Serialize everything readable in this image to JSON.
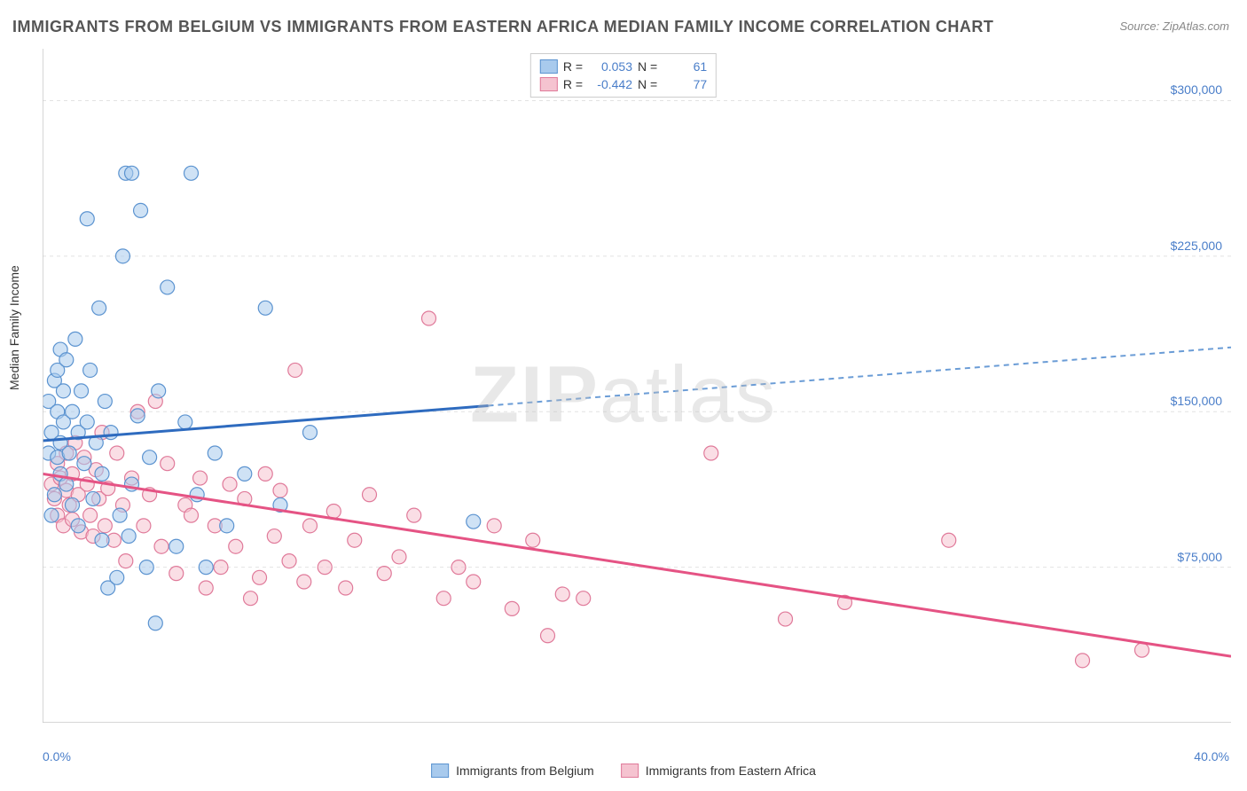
{
  "title": "IMMIGRANTS FROM BELGIUM VS IMMIGRANTS FROM EASTERN AFRICA MEDIAN FAMILY INCOME CORRELATION CHART",
  "source": "Source: ZipAtlas.com",
  "ylabel": "Median Family Income",
  "watermark_strong": "ZIP",
  "watermark_light": "atlas",
  "chart": {
    "type": "scatter",
    "xlim": [
      0,
      40
    ],
    "ylim": [
      0,
      325000
    ],
    "background_color": "#ffffff",
    "grid_color": "#e2e2e2",
    "axis_color": "#c8c8c8",
    "ygrid": [
      75000,
      150000,
      225000,
      300000
    ],
    "ytick_labels": [
      "$75,000",
      "$150,000",
      "$225,000",
      "$300,000"
    ],
    "xgrid": [
      0,
      6.67,
      13.33,
      20,
      26.67,
      33.33,
      40
    ],
    "xtick_left": "0.0%",
    "xtick_right": "40.0%",
    "marker_radius": 8,
    "marker_stroke_width": 1.2,
    "regression_width": 3
  },
  "series_a": {
    "label": "Immigrants from Belgium",
    "fill": "#a8caed",
    "stroke": "#5b93d0",
    "line_solid": "#2e6bbf",
    "line_dash": "#6a9cd6",
    "swatch_fill": "#a8caed",
    "swatch_border": "#5b93d0",
    "R": "0.053",
    "N": "61",
    "regression": {
      "x1": 0,
      "y1": 136000,
      "x2": 40,
      "y2": 181000,
      "solid_until_x": 15
    },
    "points": [
      [
        0.2,
        130000
      ],
      [
        0.2,
        155000
      ],
      [
        0.3,
        100000
      ],
      [
        0.3,
        140000
      ],
      [
        0.4,
        110000
      ],
      [
        0.4,
        165000
      ],
      [
        0.5,
        128000
      ],
      [
        0.5,
        150000
      ],
      [
        0.5,
        170000
      ],
      [
        0.6,
        120000
      ],
      [
        0.6,
        135000
      ],
      [
        0.6,
        180000
      ],
      [
        0.7,
        145000
      ],
      [
        0.7,
        160000
      ],
      [
        0.8,
        115000
      ],
      [
        0.8,
        175000
      ],
      [
        0.9,
        130000
      ],
      [
        1.0,
        105000
      ],
      [
        1.0,
        150000
      ],
      [
        1.1,
        185000
      ],
      [
        1.2,
        140000
      ],
      [
        1.2,
        95000
      ],
      [
        1.3,
        160000
      ],
      [
        1.4,
        125000
      ],
      [
        1.5,
        145000
      ],
      [
        1.5,
        243000
      ],
      [
        1.6,
        170000
      ],
      [
        1.7,
        108000
      ],
      [
        1.8,
        135000
      ],
      [
        1.9,
        200000
      ],
      [
        2.0,
        88000
      ],
      [
        2.0,
        120000
      ],
      [
        2.1,
        155000
      ],
      [
        2.2,
        65000
      ],
      [
        2.3,
        140000
      ],
      [
        2.5,
        70000
      ],
      [
        2.6,
        100000
      ],
      [
        2.7,
        225000
      ],
      [
        2.8,
        265000
      ],
      [
        2.9,
        90000
      ],
      [
        3.0,
        115000
      ],
      [
        3.0,
        265000
      ],
      [
        3.2,
        148000
      ],
      [
        3.3,
        247000
      ],
      [
        3.5,
        75000
      ],
      [
        3.6,
        128000
      ],
      [
        3.8,
        48000
      ],
      [
        3.9,
        160000
      ],
      [
        4.2,
        210000
      ],
      [
        4.5,
        85000
      ],
      [
        4.8,
        145000
      ],
      [
        5.0,
        265000
      ],
      [
        5.2,
        110000
      ],
      [
        5.5,
        75000
      ],
      [
        5.8,
        130000
      ],
      [
        6.2,
        95000
      ],
      [
        6.8,
        120000
      ],
      [
        7.5,
        200000
      ],
      [
        8.0,
        105000
      ],
      [
        9.0,
        140000
      ],
      [
        14.5,
        97000
      ]
    ]
  },
  "series_b": {
    "label": "Immigrants from Eastern Africa",
    "fill": "#f5c3d0",
    "stroke": "#e07a9a",
    "line": "#e55384",
    "swatch_fill": "#f5c3d0",
    "swatch_border": "#e07a9a",
    "R": "-0.442",
    "N": "77",
    "regression": {
      "x1": 0,
      "y1": 120000,
      "x2": 40,
      "y2": 32000
    },
    "points": [
      [
        0.3,
        115000
      ],
      [
        0.4,
        108000
      ],
      [
        0.5,
        125000
      ],
      [
        0.5,
        100000
      ],
      [
        0.6,
        118000
      ],
      [
        0.7,
        95000
      ],
      [
        0.8,
        112000
      ],
      [
        0.8,
        130000
      ],
      [
        0.9,
        105000
      ],
      [
        1.0,
        120000
      ],
      [
        1.0,
        98000
      ],
      [
        1.1,
        135000
      ],
      [
        1.2,
        110000
      ],
      [
        1.3,
        92000
      ],
      [
        1.4,
        128000
      ],
      [
        1.5,
        115000
      ],
      [
        1.6,
        100000
      ],
      [
        1.7,
        90000
      ],
      [
        1.8,
        122000
      ],
      [
        1.9,
        108000
      ],
      [
        2.0,
        140000
      ],
      [
        2.1,
        95000
      ],
      [
        2.2,
        113000
      ],
      [
        2.4,
        88000
      ],
      [
        2.5,
        130000
      ],
      [
        2.7,
        105000
      ],
      [
        2.8,
        78000
      ],
      [
        3.0,
        118000
      ],
      [
        3.2,
        150000
      ],
      [
        3.4,
        95000
      ],
      [
        3.6,
        110000
      ],
      [
        3.8,
        155000
      ],
      [
        4.0,
        85000
      ],
      [
        4.2,
        125000
      ],
      [
        4.5,
        72000
      ],
      [
        4.8,
        105000
      ],
      [
        5.0,
        100000
      ],
      [
        5.3,
        118000
      ],
      [
        5.5,
        65000
      ],
      [
        5.8,
        95000
      ],
      [
        6.0,
        75000
      ],
      [
        6.3,
        115000
      ],
      [
        6.5,
        85000
      ],
      [
        6.8,
        108000
      ],
      [
        7.0,
        60000
      ],
      [
        7.3,
        70000
      ],
      [
        7.5,
        120000
      ],
      [
        7.8,
        90000
      ],
      [
        8.0,
        112000
      ],
      [
        8.3,
        78000
      ],
      [
        8.5,
        170000
      ],
      [
        8.8,
        68000
      ],
      [
        9.0,
        95000
      ],
      [
        9.5,
        75000
      ],
      [
        9.8,
        102000
      ],
      [
        10.2,
        65000
      ],
      [
        10.5,
        88000
      ],
      [
        11.0,
        110000
      ],
      [
        11.5,
        72000
      ],
      [
        12.0,
        80000
      ],
      [
        12.5,
        100000
      ],
      [
        13.0,
        195000
      ],
      [
        13.5,
        60000
      ],
      [
        14.0,
        75000
      ],
      [
        14.5,
        68000
      ],
      [
        15.2,
        95000
      ],
      [
        15.8,
        55000
      ],
      [
        16.5,
        88000
      ],
      [
        17.0,
        42000
      ],
      [
        17.5,
        62000
      ],
      [
        18.2,
        60000
      ],
      [
        22.5,
        130000
      ],
      [
        25.0,
        50000
      ],
      [
        27.0,
        58000
      ],
      [
        30.5,
        88000
      ],
      [
        35.0,
        30000
      ],
      [
        37.0,
        35000
      ]
    ]
  },
  "legend": {
    "r_label": "R =",
    "n_label": "N ="
  }
}
